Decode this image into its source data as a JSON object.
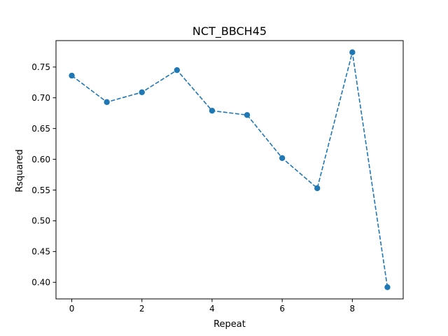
{
  "chart_data": {
    "type": "line",
    "title": "NCT_BBCH45",
    "xlabel": "Repeat",
    "ylabel": "Rsquared",
    "x": [
      0,
      1,
      2,
      3,
      4,
      5,
      6,
      7,
      8,
      9
    ],
    "series": [
      {
        "values": [
          0.736,
          0.693,
          0.709,
          0.745,
          0.679,
          0.672,
          0.602,
          0.553,
          0.774,
          0.392
        ],
        "color": "#1f77b4",
        "line_style": "dashed",
        "marker": "circle"
      }
    ],
    "xlim": [
      -0.45,
      9.45
    ],
    "ylim": [
      0.373,
      0.793
    ],
    "xticks": [
      0,
      2,
      4,
      6,
      8
    ],
    "xtick_labels": [
      "0",
      "2",
      "4",
      "6",
      "8"
    ],
    "yticks": [
      0.4,
      0.45,
      0.5,
      0.55,
      0.6,
      0.65,
      0.7,
      0.75
    ],
    "ytick_labels": [
      "0.40",
      "0.45",
      "0.50",
      "0.55",
      "0.60",
      "0.65",
      "0.70",
      "0.75"
    ],
    "grid": false,
    "legend": false
  }
}
